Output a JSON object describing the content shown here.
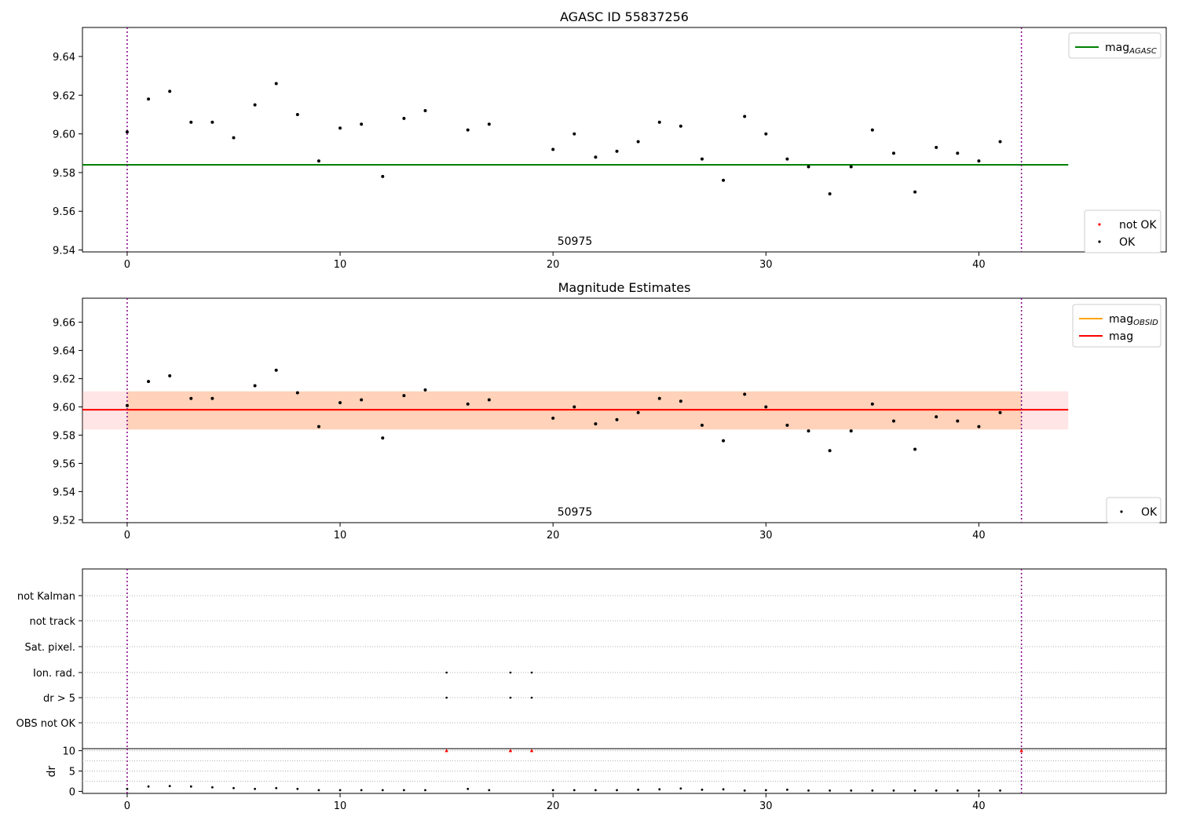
{
  "chart_data": [
    {
      "type": "scatter",
      "title": "AGASC ID 55837256",
      "xlim": [
        -2.1,
        48.8
      ],
      "ylim": [
        9.539,
        9.655
      ],
      "x_ticks": [
        "0",
        "10",
        "20",
        "30",
        "40"
      ],
      "y_ticks": [
        "9.54",
        "9.56",
        "9.58",
        "9.60",
        "9.62",
        "9.64"
      ],
      "annotation": "50975",
      "vlines": [
        0,
        42
      ],
      "hlines": [
        {
          "name": "mag_AGASC",
          "y": 9.584,
          "x_range": [
            -2.1,
            44.2
          ],
          "color": "#008000"
        }
      ],
      "series": [
        {
          "name": "not OK",
          "color": "#ff0000",
          "points": []
        },
        {
          "name": "OK",
          "color": "#000000",
          "points": [
            [
              0,
              9.601
            ],
            [
              1,
              9.618
            ],
            [
              2,
              9.622
            ],
            [
              3,
              9.606
            ],
            [
              4,
              9.606
            ],
            [
              5,
              9.598
            ],
            [
              6,
              9.615
            ],
            [
              7,
              9.626
            ],
            [
              8,
              9.61
            ],
            [
              9,
              9.586
            ],
            [
              10,
              9.603
            ],
            [
              11,
              9.605
            ],
            [
              12,
              9.578
            ],
            [
              13,
              9.608
            ],
            [
              14,
              9.612
            ],
            [
              16,
              9.602
            ],
            [
              17,
              9.605
            ],
            [
              20,
              9.592
            ],
            [
              21,
              9.6
            ],
            [
              22,
              9.588
            ],
            [
              23,
              9.591
            ],
            [
              24,
              9.596
            ],
            [
              25,
              9.606
            ],
            [
              26,
              9.604
            ],
            [
              27,
              9.587
            ],
            [
              28,
              9.576
            ],
            [
              29,
              9.609
            ],
            [
              30,
              9.6
            ],
            [
              31,
              9.587
            ],
            [
              32,
              9.583
            ],
            [
              33,
              9.569
            ],
            [
              34,
              9.583
            ],
            [
              35,
              9.602
            ],
            [
              36,
              9.59
            ],
            [
              37,
              9.57
            ],
            [
              38,
              9.593
            ],
            [
              39,
              9.59
            ],
            [
              40,
              9.586
            ],
            [
              41,
              9.596
            ]
          ]
        }
      ],
      "legend_top": [
        {
          "label": "mag",
          "sub": "AGASC",
          "color": "#008000"
        }
      ],
      "legend_bottom": [
        {
          "label": "not OK",
          "color": "#ff0000"
        },
        {
          "label": "OK",
          "color": "#000000"
        }
      ]
    },
    {
      "type": "scatter",
      "title": "Magnitude Estimates",
      "xlim": [
        -2.1,
        48.8
      ],
      "ylim": [
        9.518,
        9.677
      ],
      "x_ticks": [
        "0",
        "10",
        "20",
        "30",
        "40"
      ],
      "y_ticks": [
        "9.52",
        "9.54",
        "9.56",
        "9.58",
        "9.60",
        "9.62",
        "9.64",
        "9.66"
      ],
      "annotation": "50975",
      "vlines": [
        0,
        42
      ],
      "bands": [
        {
          "y_range": [
            9.584,
            9.611
          ],
          "x_range": [
            -2.1,
            44.2
          ],
          "color": "#ff9999",
          "opacity": 0.25
        },
        {
          "y_range": [
            9.584,
            9.611
          ],
          "x_range": [
            0,
            42
          ],
          "color": "#ffa552",
          "opacity": 0.3
        }
      ],
      "hlines": [
        {
          "name": "mag_OBSID",
          "y": 9.598,
          "x_range": [
            0,
            42
          ],
          "color": "#ffa500"
        },
        {
          "name": "mag",
          "y": 9.598,
          "x_range": [
            -2.1,
            44.2
          ],
          "color": "#ff0000"
        }
      ],
      "series": [
        {
          "name": "OK",
          "color": "#000000",
          "points": [
            [
              0,
              9.601
            ],
            [
              1,
              9.618
            ],
            [
              2,
              9.622
            ],
            [
              3,
              9.606
            ],
            [
              4,
              9.606
            ],
            [
              6,
              9.615
            ],
            [
              7,
              9.626
            ],
            [
              8,
              9.61
            ],
            [
              9,
              9.586
            ],
            [
              10,
              9.603
            ],
            [
              11,
              9.605
            ],
            [
              12,
              9.578
            ],
            [
              13,
              9.608
            ],
            [
              14,
              9.612
            ],
            [
              16,
              9.602
            ],
            [
              17,
              9.605
            ],
            [
              20,
              9.592
            ],
            [
              21,
              9.6
            ],
            [
              22,
              9.588
            ],
            [
              23,
              9.591
            ],
            [
              24,
              9.596
            ],
            [
              25,
              9.606
            ],
            [
              26,
              9.604
            ],
            [
              27,
              9.587
            ],
            [
              28,
              9.576
            ],
            [
              29,
              9.609
            ],
            [
              30,
              9.6
            ],
            [
              31,
              9.587
            ],
            [
              32,
              9.583
            ],
            [
              33,
              9.569
            ],
            [
              34,
              9.583
            ],
            [
              35,
              9.602
            ],
            [
              36,
              9.59
            ],
            [
              37,
              9.57
            ],
            [
              38,
              9.593
            ],
            [
              39,
              9.59
            ],
            [
              40,
              9.586
            ],
            [
              41,
              9.596
            ]
          ]
        }
      ],
      "legend_top": [
        {
          "label": "mag",
          "sub": "OBSID",
          "color": "#ffa500"
        },
        {
          "label": "mag",
          "sub": "",
          "color": "#ff0000"
        }
      ],
      "legend_bottom": [
        {
          "label": "OK",
          "color": "#000000"
        }
      ]
    },
    {
      "type": "scatter",
      "title": "",
      "xlim": [
        -2.1,
        48.8
      ],
      "x_ticks": [
        "0",
        "10",
        "20",
        "30",
        "40"
      ],
      "vlines": [
        0,
        42
      ],
      "flag_categories": [
        "not Kalman",
        "not track",
        "Sat. pixel.",
        "Ion. rad.",
        "dr > 5",
        "OBS not OK"
      ],
      "flags": {
        "not Kalman": [],
        "not track": [],
        "Sat. pixel.": [],
        "Ion. rad.": [
          15,
          18,
          19
        ],
        "dr > 5": [
          15,
          18,
          19
        ],
        "OBS not OK": []
      }
    },
    {
      "type": "scatter",
      "title": "",
      "xlim": [
        -2.1,
        48.8
      ],
      "ylim": [
        -0.5,
        10.5
      ],
      "x_ticks": [
        "0",
        "10",
        "20",
        "30",
        "40"
      ],
      "y_ticks": [
        "0",
        "5",
        "10"
      ],
      "ylabel": "dr",
      "vlines": [
        0,
        42
      ],
      "dr_points": [
        [
          0,
          0.6
        ],
        [
          1,
          1.2
        ],
        [
          2,
          1.3
        ],
        [
          3,
          1.2
        ],
        [
          4,
          1.0
        ],
        [
          5,
          0.8
        ],
        [
          6,
          0.6
        ],
        [
          7,
          0.8
        ],
        [
          8,
          0.6
        ],
        [
          9,
          0.3
        ],
        [
          10,
          0.3
        ],
        [
          11,
          0.3
        ],
        [
          12,
          0.3
        ],
        [
          13,
          0.3
        ],
        [
          14,
          0.3
        ],
        [
          16,
          0.6
        ],
        [
          17,
          0.3
        ],
        [
          20,
          0.3
        ],
        [
          21,
          0.3
        ],
        [
          22,
          0.3
        ],
        [
          23,
          0.3
        ],
        [
          24,
          0.4
        ],
        [
          25,
          0.5
        ],
        [
          26,
          0.7
        ],
        [
          27,
          0.4
        ],
        [
          28,
          0.5
        ],
        [
          29,
          0.2
        ],
        [
          30,
          0.3
        ],
        [
          31,
          0.4
        ],
        [
          32,
          0.2
        ],
        [
          33,
          0.2
        ],
        [
          34,
          0.2
        ],
        [
          35,
          0.2
        ],
        [
          36,
          0.2
        ],
        [
          37,
          0.2
        ],
        [
          38,
          0.2
        ],
        [
          39,
          0.2
        ],
        [
          40,
          0.2
        ],
        [
          41,
          0.2
        ]
      ],
      "dr_outliers": [
        [
          15,
          10
        ],
        [
          18,
          10
        ],
        [
          19,
          10
        ],
        [
          42,
          10
        ]
      ]
    }
  ]
}
